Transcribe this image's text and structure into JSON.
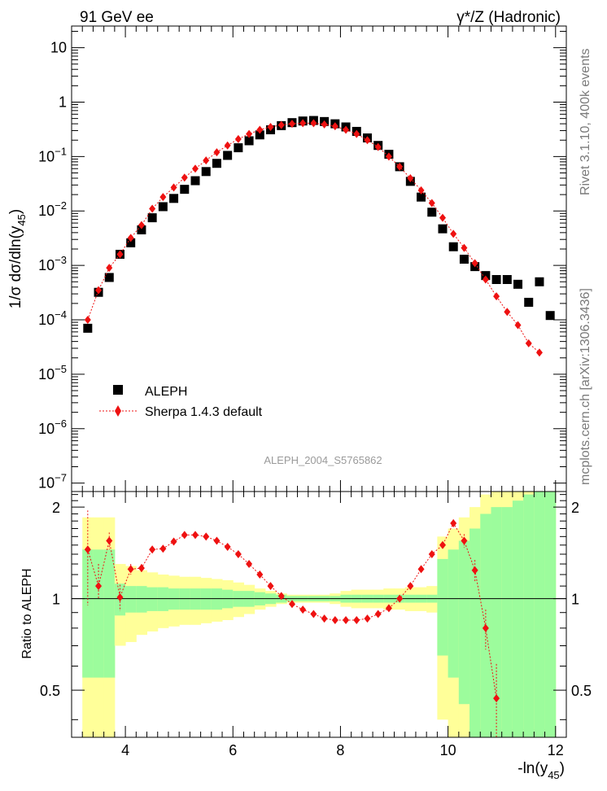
{
  "header": {
    "left": "91 GeV ee",
    "right": "γ*/Z (Hadronic)"
  },
  "side": {
    "rivet": "Rivet 3.1.10,  400k events",
    "mcplots": "mcplots.cern.ch [arXiv:1306.3436]"
  },
  "chart_data": [
    {
      "type": "scatter",
      "panel": "main",
      "analysis_label": "ALEPH_2004_S5765862",
      "ylabel": "1/σ  dσ/dln(y45)",
      "yscale": "log",
      "ylim": [
        7e-08,
        25
      ],
      "y_ticks": [
        "10^-7",
        "10^-6",
        "10^-5",
        "10^-4",
        "10^-3",
        "10^-2",
        "10^-1",
        "1",
        "10"
      ],
      "xlim": [
        3.0,
        12.2
      ],
      "legend_position": "bottom-left",
      "series": [
        {
          "name": "ALEPH",
          "marker": "square",
          "color": "#000000",
          "x": [
            3.3,
            3.5,
            3.7,
            3.9,
            4.1,
            4.3,
            4.5,
            4.7,
            4.9,
            5.1,
            5.3,
            5.5,
            5.7,
            5.9,
            6.1,
            6.3,
            6.5,
            6.7,
            6.9,
            7.1,
            7.3,
            7.5,
            7.7,
            7.9,
            8.1,
            8.3,
            8.5,
            8.7,
            8.9,
            9.1,
            9.3,
            9.5,
            9.7,
            9.9,
            10.1,
            10.3,
            10.5,
            10.7,
            10.9,
            11.1,
            11.3,
            11.5,
            11.7,
            11.9
          ],
          "y": [
            7e-05,
            0.00032,
            0.0006,
            0.0016,
            0.0026,
            0.0045,
            0.0075,
            0.012,
            0.017,
            0.025,
            0.036,
            0.053,
            0.075,
            0.105,
            0.145,
            0.195,
            0.25,
            0.31,
            0.37,
            0.42,
            0.45,
            0.46,
            0.44,
            0.4,
            0.35,
            0.29,
            0.22,
            0.16,
            0.11,
            0.065,
            0.035,
            0.018,
            0.0095,
            0.0047,
            0.0022,
            0.0013,
            0.00095,
            0.00065,
            0.00055,
            0.00055,
            0.00045,
            0.00021,
            0.0005,
            0.00012
          ]
        },
        {
          "name": "Sherpa 1.4.3 default",
          "marker": "diamond",
          "color": "#ee1111",
          "x": [
            3.3,
            3.5,
            3.7,
            3.9,
            4.1,
            4.3,
            4.5,
            4.7,
            4.9,
            5.1,
            5.3,
            5.5,
            5.7,
            5.9,
            6.1,
            6.3,
            6.5,
            6.7,
            6.9,
            7.1,
            7.3,
            7.5,
            7.7,
            7.9,
            8.1,
            8.3,
            8.5,
            8.7,
            8.9,
            9.1,
            9.3,
            9.5,
            9.7,
            9.9,
            10.1,
            10.3,
            10.5,
            10.7,
            10.9,
            11.1,
            11.3,
            11.5,
            11.7
          ],
          "y": [
            0.0001,
            0.00035,
            0.0009,
            0.0016,
            0.0032,
            0.0055,
            0.011,
            0.018,
            0.027,
            0.041,
            0.06,
            0.085,
            0.12,
            0.16,
            0.21,
            0.26,
            0.31,
            0.35,
            0.38,
            0.4,
            0.41,
            0.41,
            0.39,
            0.36,
            0.31,
            0.26,
            0.2,
            0.15,
            0.1,
            0.065,
            0.04,
            0.024,
            0.014,
            0.0075,
            0.0038,
            0.0021,
            0.0011,
            0.00055,
            0.00027,
            0.00014,
            8e-05,
            3.7e-05,
            2.5e-05
          ]
        }
      ]
    },
    {
      "type": "scatter",
      "panel": "ratio",
      "ylabel": "Ratio to ALEPH",
      "xlabel": "-ln(y45)",
      "ylim": [
        0.35,
        2.25
      ],
      "y_ticks": [
        "0.5",
        "1",
        "2"
      ],
      "x_ticks": [
        "4",
        "6",
        "8",
        "10",
        "12"
      ],
      "xlim": [
        3.0,
        12.2
      ],
      "reference_line": 1,
      "bands": {
        "bin_edges": [
          3.2,
          3.4,
          3.6,
          3.8,
          4.0,
          4.2,
          4.4,
          4.6,
          4.8,
          5.0,
          5.2,
          5.4,
          5.6,
          5.8,
          6.0,
          6.2,
          6.4,
          6.6,
          6.8,
          7.0,
          7.2,
          7.4,
          7.6,
          7.8,
          8.0,
          8.2,
          8.4,
          8.6,
          8.8,
          9.0,
          9.2,
          9.4,
          9.6,
          9.8,
          10.0,
          10.2,
          10.4,
          10.6,
          10.8,
          11.0,
          11.2,
          11.4,
          11.6,
          11.8,
          12.0
        ],
        "green_half_width": [
          0.45,
          0.45,
          0.45,
          0.12,
          0.1,
          0.1,
          0.09,
          0.09,
          0.08,
          0.08,
          0.08,
          0.08,
          0.08,
          0.07,
          0.06,
          0.06,
          0.05,
          0.04,
          0.03,
          0.02,
          0.02,
          0.02,
          0.02,
          0.02,
          0.03,
          0.03,
          0.03,
          0.03,
          0.03,
          0.03,
          0.03,
          0.03,
          0.03,
          0.35,
          0.45,
          0.55,
          0.7,
          0.9,
          1.0,
          1.0,
          1.1,
          1.2,
          1.25,
          1.3
        ],
        "yellow_half_width": [
          0.85,
          0.85,
          0.85,
          0.3,
          0.28,
          0.24,
          0.22,
          0.2,
          0.19,
          0.18,
          0.18,
          0.17,
          0.16,
          0.15,
          0.13,
          0.11,
          0.08,
          0.06,
          0.04,
          0.03,
          0.03,
          0.03,
          0.03,
          0.04,
          0.06,
          0.07,
          0.07,
          0.07,
          0.08,
          0.08,
          0.09,
          0.09,
          0.1,
          0.6,
          0.7,
          0.85,
          1.0,
          1.2,
          1.3,
          1.35,
          1.45,
          1.55,
          1.6,
          1.7
        ],
        "green_color": "#9cfc9c",
        "yellow_color": "#ffff99"
      },
      "series": [
        {
          "name": "Sherpa 1.4.3 default",
          "color": "#ee1111",
          "x": [
            3.3,
            3.5,
            3.7,
            3.9,
            4.1,
            4.3,
            4.5,
            4.7,
            4.9,
            5.1,
            5.3,
            5.5,
            5.7,
            5.9,
            6.1,
            6.3,
            6.5,
            6.7,
            6.9,
            7.1,
            7.3,
            7.5,
            7.7,
            7.9,
            8.1,
            8.3,
            8.5,
            8.7,
            8.9,
            9.1,
            9.3,
            9.5,
            9.7,
            9.9,
            10.1,
            10.3,
            10.5,
            10.7,
            10.9
          ],
          "y": [
            1.45,
            1.1,
            1.55,
            1.01,
            1.25,
            1.26,
            1.45,
            1.46,
            1.54,
            1.62,
            1.62,
            1.6,
            1.55,
            1.48,
            1.4,
            1.3,
            1.2,
            1.1,
            1.02,
            0.96,
            0.92,
            0.89,
            0.86,
            0.85,
            0.85,
            0.85,
            0.86,
            0.89,
            0.93,
            1.0,
            1.1,
            1.25,
            1.4,
            1.5,
            1.77,
            1.55,
            1.24,
            0.8,
            0.47
          ],
          "err_lo": [
            0.5,
            0.1,
            0.1,
            0.1,
            0.05,
            0.04,
            0.04,
            0.03,
            0.03,
            0.02,
            0.02,
            0.02,
            0.02,
            0.01,
            0.01,
            0.01,
            0.01,
            0.01,
            0.01,
            0.01,
            0.01,
            0.01,
            0.01,
            0.01,
            0.01,
            0.01,
            0.01,
            0.01,
            0.01,
            0.01,
            0.01,
            0.02,
            0.02,
            0.03,
            0.05,
            0.08,
            0.1,
            0.12,
            0.14
          ],
          "err_hi": [
            0.5,
            0.2,
            0.1,
            0.1,
            0.05,
            0.04,
            0.04,
            0.03,
            0.03,
            0.02,
            0.02,
            0.02,
            0.02,
            0.01,
            0.01,
            0.01,
            0.01,
            0.01,
            0.01,
            0.01,
            0.01,
            0.01,
            0.01,
            0.01,
            0.01,
            0.01,
            0.01,
            0.01,
            0.01,
            0.01,
            0.01,
            0.02,
            0.02,
            0.03,
            0.05,
            0.08,
            0.1,
            0.12,
            0.14
          ]
        }
      ]
    }
  ]
}
